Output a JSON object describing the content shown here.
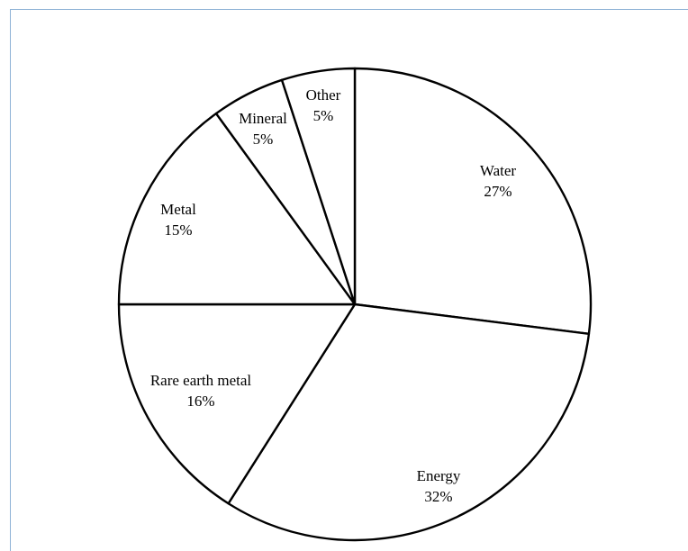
{
  "chart_data": {
    "type": "pie",
    "title": "",
    "slices": [
      {
        "label": "Water",
        "pct_label": "27%",
        "value": 27
      },
      {
        "label": "Energy",
        "pct_label": "32%",
        "value": 32
      },
      {
        "label": "Rare earth metal",
        "pct_label": "16%",
        "value": 16
      },
      {
        "label": "Metal",
        "pct_label": "15%",
        "value": 15
      },
      {
        "label": "Mineral",
        "pct_label": "5%",
        "value": 5
      },
      {
        "label": "Other",
        "pct_label": "5%",
        "value": 5
      }
    ],
    "start": "12 o'clock",
    "direction": "clockwise",
    "fill_color": "#ffffff",
    "stroke_color": "#000000",
    "legend": "none"
  }
}
